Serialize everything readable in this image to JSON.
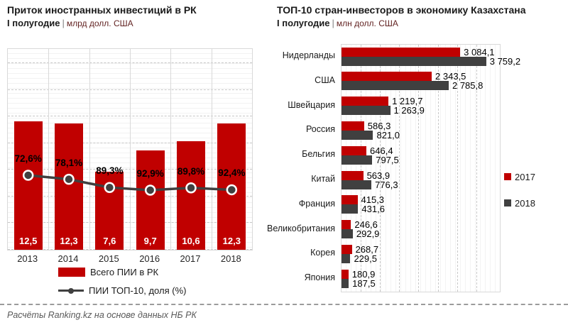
{
  "footer": {
    "note": "Расчёты Ranking.kz на основе данных НБ РК"
  },
  "colors": {
    "accent": "#c00000",
    "dark": "#404040"
  },
  "chart_data": [
    {
      "id": "fdi-inflow-kz",
      "type": "bar",
      "title": "Приток иностранных инвестиций в РК",
      "subtitle": "I полугодие",
      "separator": "|",
      "unit": "млрд долл. США",
      "categories": [
        "2013",
        "2014",
        "2015",
        "2016",
        "2017",
        "2018"
      ],
      "series": [
        {
          "name": "Всего ПИИ в РК",
          "type": "bar",
          "color": "#c00000",
          "values": [
            12.5,
            12.3,
            7.6,
            9.7,
            10.6,
            12.3
          ],
          "labels": [
            "12,5",
            "12,3",
            "7,6",
            "9,7",
            "10,6",
            "12,3"
          ]
        },
        {
          "name": "ПИИ ТОП-10, доля (%)",
          "type": "line",
          "color": "#404040",
          "values": [
            72.6,
            78.1,
            89.3,
            92.9,
            89.8,
            92.4
          ],
          "labels": [
            "72,6%",
            "78,1%",
            "89,3%",
            "92,9%",
            "89,8%",
            "92,4%"
          ]
        }
      ],
      "ylim": [
        0,
        20
      ],
      "grid": "horizontal-dashed",
      "legend_position": "bottom"
    },
    {
      "id": "top10-investor-countries",
      "type": "bar",
      "orientation": "horizontal",
      "title": "ТОП-10 стран-инвесторов в экономику Казахстана",
      "subtitle": "I полугодие",
      "separator": "|",
      "unit": "млн долл. США",
      "categories": [
        "Нидерланды",
        "США",
        "Швейцария",
        "Россия",
        "Бельгия",
        "Китай",
        "Франция",
        "Великобритания",
        "Корея",
        "Япония"
      ],
      "series": [
        {
          "name": "2017",
          "color": "#c00000",
          "values": [
            3084.1,
            2343.5,
            1219.7,
            586.3,
            646.4,
            563.9,
            415.3,
            246.6,
            268.7,
            180.9
          ],
          "labels": [
            "3 084,1",
            "2 343,5",
            "1 219,7",
            "586,3",
            "646,4",
            "563,9",
            "415,3",
            "246,6",
            "268,7",
            "180,9"
          ]
        },
        {
          "name": "2018",
          "color": "#404040",
          "values": [
            3759.2,
            2785.8,
            1263.9,
            821.0,
            797.5,
            776.3,
            431.6,
            292.9,
            229.5,
            187.5
          ],
          "labels": [
            "3 759,2",
            "2 785,8",
            "1 263,9",
            "821,0",
            "797,5",
            "776,3",
            "431,6",
            "292,9",
            "229,5",
            "187,5"
          ]
        }
      ],
      "xlim": [
        0,
        4000
      ],
      "grid": "vertical-dashed",
      "legend_position": "right"
    }
  ]
}
